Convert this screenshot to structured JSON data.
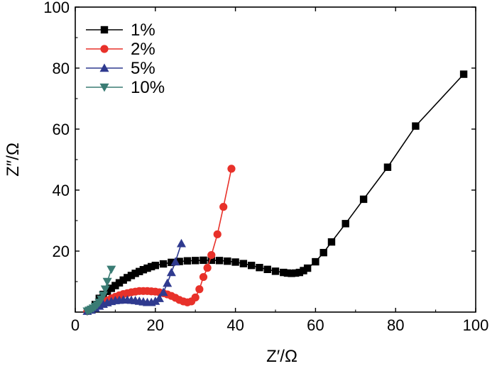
{
  "chart_data": {
    "type": "scatter",
    "title": "",
    "xlabel": "Z′/Ω",
    "ylabel": "Z″/Ω",
    "xlim": [
      0,
      100
    ],
    "ylim": [
      0,
      100
    ],
    "xticks": [
      0,
      20,
      40,
      60,
      80,
      100
    ],
    "yticks": [
      20,
      40,
      60,
      80,
      100
    ],
    "legend_position": "top-left",
    "series": [
      {
        "name": "1%",
        "color": "#000000",
        "marker": "square",
        "x": [
          5,
          6,
          7,
          8,
          9,
          10,
          11,
          12,
          13,
          14,
          15,
          16,
          17,
          18,
          19,
          20,
          22,
          24,
          26,
          28,
          30,
          32,
          34,
          36,
          38,
          40,
          42,
          44,
          46,
          48,
          50,
          52,
          53,
          54,
          55,
          56,
          57,
          58,
          60,
          62,
          64,
          67.5,
          72,
          78,
          85,
          97
        ],
        "y": [
          2.5,
          4.5,
          5.8,
          6.8,
          7.8,
          8.7,
          9.6,
          10.5,
          11.3,
          12.0,
          12.7,
          13.3,
          13.9,
          14.4,
          14.9,
          15.3,
          15.8,
          16.3,
          16.6,
          16.8,
          16.9,
          17.0,
          17.0,
          16.9,
          16.7,
          16.4,
          15.9,
          15.3,
          14.6,
          14.0,
          13.4,
          13.0,
          12.8,
          12.7,
          12.8,
          13.0,
          13.6,
          14.4,
          16.5,
          19.5,
          23.0,
          29.0,
          37.0,
          47.5,
          61.0,
          78.0
        ]
      },
      {
        "name": "2%",
        "color": "#e8312a",
        "marker": "circle",
        "x": [
          3,
          4,
          5,
          6,
          7,
          8,
          9,
          10,
          11,
          12,
          13,
          14,
          15,
          16,
          17,
          18,
          19,
          20,
          21,
          22,
          23,
          24,
          25,
          26,
          27,
          28,
          29,
          30,
          31,
          32,
          33,
          34,
          35.5,
          37,
          39
        ],
        "y": [
          0.3,
          0.8,
          1.5,
          2.3,
          3.0,
          3.8,
          4.5,
          5.0,
          5.5,
          5.9,
          6.2,
          6.5,
          6.7,
          6.9,
          6.9,
          6.9,
          6.8,
          6.7,
          6.5,
          6.2,
          5.8,
          5.3,
          4.7,
          4.0,
          3.5,
          3.2,
          3.5,
          4.8,
          7.5,
          11.5,
          14.5,
          18.7,
          25.5,
          34.5,
          47.0
        ]
      },
      {
        "name": "5%",
        "color": "#2f3a8f",
        "marker": "triangle-up",
        "x": [
          3,
          4,
          5,
          6,
          7,
          8,
          9,
          10,
          11,
          12,
          13,
          14,
          15,
          16,
          17,
          18,
          19,
          20,
          21,
          22,
          23,
          24,
          25,
          26.5
        ],
        "y": [
          0.3,
          0.7,
          1.3,
          2.0,
          2.6,
          3.1,
          3.5,
          3.8,
          3.9,
          4.0,
          4.0,
          3.9,
          3.8,
          3.6,
          3.4,
          3.2,
          3.2,
          3.6,
          4.5,
          6.5,
          9.5,
          13.0,
          16.5,
          22.5
        ]
      },
      {
        "name": "10%",
        "color": "#3a7c74",
        "marker": "triangle-down",
        "x": [
          3,
          3.5,
          4,
          4.5,
          5,
          5.5,
          6,
          6.5,
          7,
          7.5,
          8,
          9
        ],
        "y": [
          0.3,
          0.6,
          0.9,
          1.3,
          1.8,
          2.4,
          3.2,
          4.2,
          5.5,
          7.5,
          10.0,
          14.0
        ]
      }
    ]
  }
}
